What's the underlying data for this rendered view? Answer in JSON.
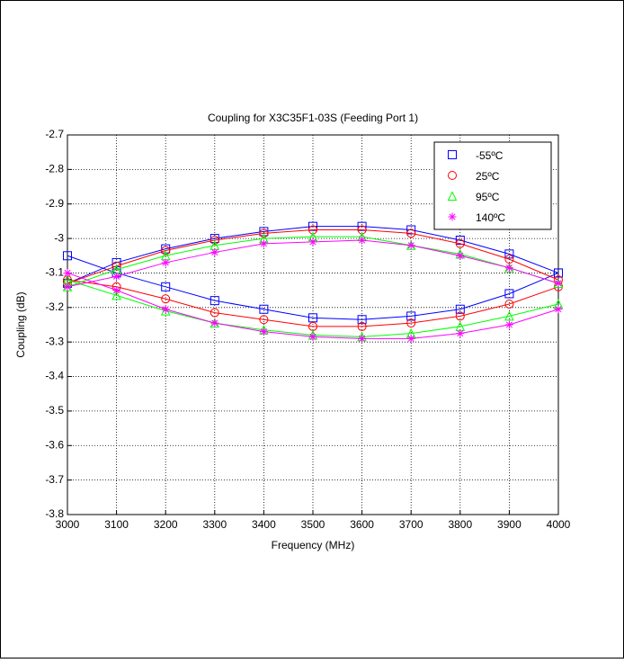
{
  "chart_data": {
    "type": "line",
    "title": "Coupling for X3C35F1-03S (Feeding Port 1)",
    "x_label": "Frequency (MHz)",
    "y_label": "Coupling (dB)",
    "x": [
      3000,
      3100,
      3200,
      3300,
      3400,
      3500,
      3600,
      3700,
      3800,
      3900,
      4000
    ],
    "xlim": [
      3000,
      4000
    ],
    "xticks": [
      3000,
      3100,
      3200,
      3300,
      3400,
      3500,
      3600,
      3700,
      3800,
      3900,
      4000
    ],
    "ylim": [
      -3.8,
      -2.7
    ],
    "yticks": [
      -2.7,
      -2.8,
      -2.9,
      -3,
      -3.1,
      -3.2,
      -3.3,
      -3.4,
      -3.5,
      -3.6,
      -3.7,
      -3.8
    ],
    "grid": true,
    "legend": "top-right",
    "series": [
      {
        "name": "-55ºC",
        "color": "#0000ff",
        "marker": "square",
        "curves": [
          [
            -3.13,
            -3.07,
            -3.03,
            -3.0,
            -2.98,
            -2.965,
            -2.965,
            -2.975,
            -3.005,
            -3.045,
            -3.1
          ],
          [
            -3.05,
            -3.1,
            -3.14,
            -3.18,
            -3.205,
            -3.23,
            -3.235,
            -3.225,
            -3.205,
            -3.16,
            -3.1
          ]
        ]
      },
      {
        "name": "25ºC",
        "color": "#ff0000",
        "marker": "circle",
        "curves": [
          [
            -3.13,
            -3.08,
            -3.035,
            -3.005,
            -2.985,
            -2.975,
            -2.975,
            -2.985,
            -3.015,
            -3.06,
            -3.12
          ],
          [
            -3.12,
            -3.14,
            -3.175,
            -3.215,
            -3.235,
            -3.255,
            -3.255,
            -3.245,
            -3.225,
            -3.19,
            -3.14
          ]
        ]
      },
      {
        "name": "95ºC",
        "color": "#00ff00",
        "marker": "triangle",
        "curves": [
          [
            -3.14,
            -3.09,
            -3.05,
            -3.02,
            -3.0,
            -2.995,
            -2.995,
            -3.02,
            -3.045,
            -3.085,
            -3.13
          ],
          [
            -3.12,
            -3.165,
            -3.21,
            -3.245,
            -3.265,
            -3.28,
            -3.285,
            -3.275,
            -3.255,
            -3.225,
            -3.19
          ]
        ]
      },
      {
        "name": "140ºC",
        "color": "#ff00ff",
        "marker": "star",
        "curves": [
          [
            -3.14,
            -3.11,
            -3.07,
            -3.04,
            -3.015,
            -3.01,
            -3.005,
            -3.02,
            -3.05,
            -3.085,
            -3.13
          ],
          [
            -3.1,
            -3.15,
            -3.205,
            -3.245,
            -3.27,
            -3.285,
            -3.29,
            -3.29,
            -3.275,
            -3.25,
            -3.205
          ]
        ]
      }
    ]
  }
}
